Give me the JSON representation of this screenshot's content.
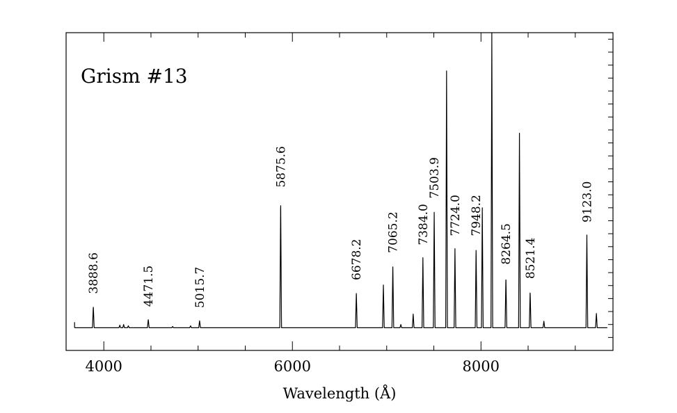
{
  "chart_data": {
    "type": "line",
    "title": "",
    "annotation_title": "Grism #13",
    "xlabel": "Wavelength (Å)",
    "ylabel": "",
    "xlim": [
      3600,
      9400
    ],
    "ylim": [
      -0.35,
      4.55
    ],
    "x_ticks": [
      4000,
      6000,
      8000
    ],
    "x_tick_labels": [
      "4000",
      "6000",
      "8000"
    ],
    "x_minor_step": 500,
    "y_minor_step": 0.2,
    "y_major_step": 1.0,
    "grid": false,
    "baseline": 0.0,
    "line_width_A": 9,
    "line_labels": [
      "3888.6",
      "4471.5",
      "5015.7",
      "5875.6",
      "6678.2",
      "7065.2",
      "7384.0",
      "7503.9",
      "7724.0",
      "7948.2",
      "8264.5",
      "8521.4",
      "9123.0"
    ],
    "label_positions_A": [
      3888.6,
      4471.5,
      5015.7,
      5875.6,
      6678.2,
      7065.2,
      7384.0,
      7503.9,
      7724.0,
      7948.2,
      8264.5,
      8521.4,
      9123.0
    ],
    "peaks": [
      {
        "x": 3888.6,
        "y": 0.33
      },
      {
        "x": 4471.5,
        "y": 0.13
      },
      {
        "x": 5015.7,
        "y": 0.11
      },
      {
        "x": 5875.6,
        "y": 1.97
      },
      {
        "x": 6678.2,
        "y": 0.54
      },
      {
        "x": 6965.0,
        "y": 0.66
      },
      {
        "x": 7065.2,
        "y": 0.96
      },
      {
        "x": 7281.0,
        "y": 0.21
      },
      {
        "x": 7384.0,
        "y": 1.08
      },
      {
        "x": 7503.9,
        "y": 1.8
      },
      {
        "x": 7635.0,
        "y": 3.96
      },
      {
        "x": 7724.0,
        "y": 1.22
      },
      {
        "x": 7948.2,
        "y": 1.22
      },
      {
        "x": 8014.0,
        "y": 1.85
      },
      {
        "x": 8115.0,
        "y": 4.55
      },
      {
        "x": 8264.5,
        "y": 0.78
      },
      {
        "x": 8408.0,
        "y": 3.0
      },
      {
        "x": 8521.4,
        "y": 0.56
      },
      {
        "x": 8667.0,
        "y": 0.1
      },
      {
        "x": 9123.0,
        "y": 1.43
      },
      {
        "x": 9224.0,
        "y": 0.22
      },
      {
        "x": 4170.0,
        "y": 0.04
      },
      {
        "x": 4210.0,
        "y": 0.05
      },
      {
        "x": 4260.0,
        "y": 0.03
      },
      {
        "x": 4730.0,
        "y": 0.02
      },
      {
        "x": 4920.0,
        "y": 0.03
      },
      {
        "x": 7150.0,
        "y": 0.05
      }
    ]
  }
}
